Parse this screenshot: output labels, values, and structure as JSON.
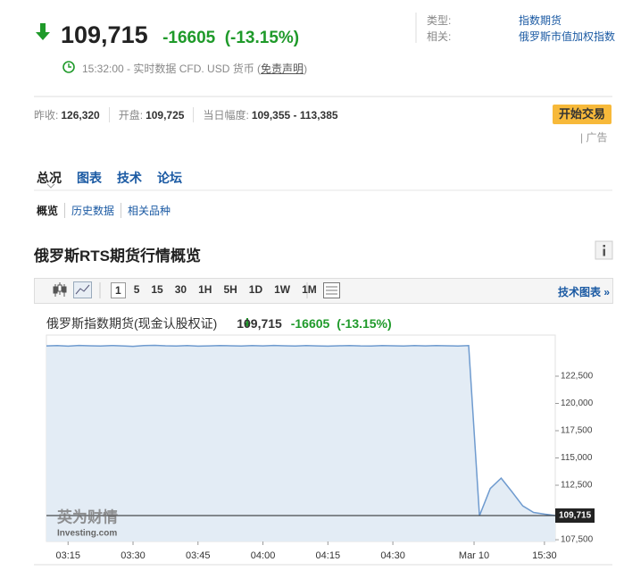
{
  "header": {
    "price": "109,715",
    "change": "-16605",
    "change_pct": "(-13.15%)",
    "time": "15:32:00 - 实时数据 CFD. USD 货币 (",
    "disclaimer": "免责声明",
    "time_close": ")"
  },
  "info": [
    {
      "label": "类型:",
      "value": "指数期货"
    },
    {
      "label": "相关:",
      "value": "俄罗斯市值加权指数"
    }
  ],
  "stats": [
    {
      "label": "昨收:",
      "value": "126,320"
    },
    {
      "label": "开盘:",
      "value": "109,725"
    },
    {
      "label": "当日幅度:",
      "value": "109,355 - 113,385"
    }
  ],
  "trade_button": "开始交易",
  "ad": "| 广告",
  "tabs": [
    "总况",
    "图表",
    "技术",
    "论坛"
  ],
  "subtabs": [
    "概览",
    "历史数据",
    "相关品种"
  ],
  "section_title": "俄罗斯RTS期货行情概览",
  "toolbar": {
    "intervals": [
      "1",
      "5",
      "15",
      "30",
      "1H",
      "5H",
      "1D",
      "1W",
      "1M"
    ],
    "link": "技术图表 »"
  },
  "chart_data": {
    "type": "line",
    "title": "俄罗斯指数期货(现金认股权证)",
    "quote": {
      "price": "109,715",
      "change": "-16605",
      "change_pct": "(-13.15%)"
    },
    "color": "#6f9bcf",
    "fill": "#e3ecf5",
    "values": [
      125280,
      125300,
      125250,
      125320,
      125290,
      125260,
      125310,
      125280,
      125240,
      125300,
      125330,
      125290,
      125270,
      125300,
      125250,
      125280,
      125310,
      125290,
      125260,
      125300,
      125280,
      125320,
      125290,
      125270,
      125300,
      125280,
      125250,
      125290,
      125310,
      125280,
      125270,
      125300,
      125290,
      125260,
      125300,
      125280,
      125300,
      125290,
      125270,
      125300,
      109700,
      112200,
      113150,
      111900,
      110600,
      110000,
      109850,
      109715
    ],
    "xlim": [
      0,
      47
    ],
    "xticks": [
      {
        "value": 2,
        "label": "03:15"
      },
      {
        "value": 8,
        "label": "03:30"
      },
      {
        "value": 14,
        "label": "03:45"
      },
      {
        "value": 20,
        "label": "04:00"
      },
      {
        "value": 26,
        "label": "04:15"
      },
      {
        "value": 32,
        "label": "04:30"
      },
      {
        "value": 39.5,
        "label": "Mar 10"
      },
      {
        "value": 46,
        "label": "15:30"
      }
    ],
    "ylim": [
      107340,
      126270
    ],
    "yticks": [
      {
        "value": 107500,
        "label": "107,500"
      },
      {
        "value": 112500,
        "label": "112,500"
      },
      {
        "value": 115000,
        "label": "115,000"
      },
      {
        "value": 117500,
        "label": "117,500"
      },
      {
        "value": 120000,
        "label": "120,000"
      },
      {
        "value": 122500,
        "label": "122,500"
      }
    ],
    "current": {
      "value": 109715,
      "label": "109,715"
    },
    "logo": "英为财情",
    "logo_sub": "Investing.com"
  }
}
